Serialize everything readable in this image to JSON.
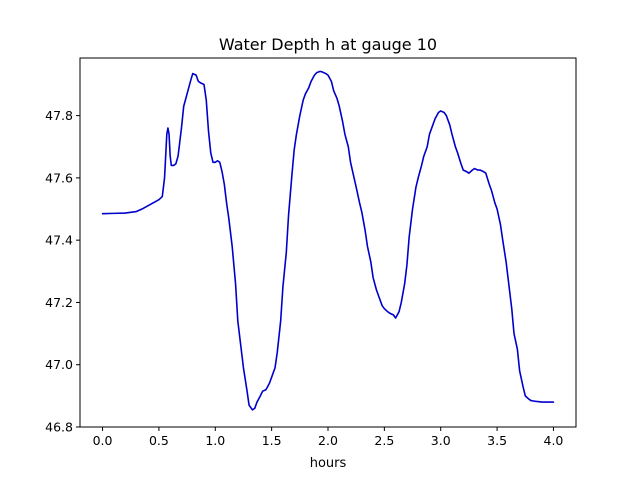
{
  "chart_data": {
    "type": "line",
    "title": "Water Depth h at gauge 10",
    "xlabel": "hours",
    "ylabel": "",
    "xlim": [
      -0.2,
      4.2
    ],
    "ylim": [
      46.8,
      47.985
    ],
    "xticks": [
      "0.0",
      "0.5",
      "1.0",
      "1.5",
      "2.0",
      "2.5",
      "3.0",
      "3.5",
      "4.0"
    ],
    "yticks": [
      "46.8",
      "47.0",
      "47.2",
      "47.4",
      "47.6",
      "47.8"
    ],
    "grid": false,
    "series": [
      {
        "color": "#0000cc",
        "x": [
          0.0,
          0.1,
          0.2,
          0.3,
          0.35,
          0.4,
          0.45,
          0.5,
          0.53,
          0.55,
          0.57,
          0.58,
          0.59,
          0.6,
          0.61,
          0.63,
          0.65,
          0.67,
          0.7,
          0.72,
          0.75,
          0.78,
          0.8,
          0.83,
          0.85,
          0.87,
          0.9,
          0.92,
          0.94,
          0.96,
          0.98,
          1.0,
          1.02,
          1.04,
          1.06,
          1.08,
          1.1,
          1.12,
          1.15,
          1.18,
          1.2,
          1.25,
          1.28,
          1.3,
          1.33,
          1.35,
          1.37,
          1.4,
          1.42,
          1.45,
          1.48,
          1.5,
          1.53,
          1.55,
          1.58,
          1.6,
          1.63,
          1.65,
          1.68,
          1.7,
          1.72,
          1.75,
          1.78,
          1.8,
          1.83,
          1.85,
          1.88,
          1.9,
          1.93,
          1.95,
          1.98,
          2.0,
          2.03,
          2.05,
          2.08,
          2.1,
          2.13,
          2.15,
          2.18,
          2.2,
          2.25,
          2.28,
          2.3,
          2.33,
          2.35,
          2.38,
          2.4,
          2.43,
          2.45,
          2.48,
          2.5,
          2.53,
          2.55,
          2.58,
          2.6,
          2.63,
          2.65,
          2.68,
          2.7,
          2.72,
          2.75,
          2.78,
          2.8,
          2.83,
          2.85,
          2.88,
          2.9,
          2.93,
          2.95,
          2.98,
          3.0,
          3.03,
          3.05,
          3.08,
          3.1,
          3.13,
          3.15,
          3.18,
          3.2,
          3.23,
          3.25,
          3.28,
          3.3,
          3.33,
          3.35,
          3.38,
          3.4,
          3.43,
          3.45,
          3.48,
          3.5,
          3.53,
          3.55,
          3.58,
          3.6,
          3.63,
          3.65,
          3.68,
          3.7,
          3.73,
          3.75,
          3.78,
          3.8,
          3.83,
          3.85,
          3.88,
          3.9,
          3.93,
          3.95,
          3.98,
          4.0
        ],
        "y": [
          47.485,
          47.486,
          47.487,
          47.492,
          47.5,
          47.51,
          47.52,
          47.53,
          47.54,
          47.6,
          47.74,
          47.76,
          47.74,
          47.67,
          47.64,
          47.64,
          47.645,
          47.67,
          47.76,
          47.83,
          47.87,
          47.91,
          47.935,
          47.93,
          47.91,
          47.905,
          47.9,
          47.85,
          47.75,
          47.68,
          47.65,
          47.65,
          47.655,
          47.65,
          47.62,
          47.58,
          47.52,
          47.47,
          47.38,
          47.26,
          47.14,
          46.99,
          46.92,
          46.87,
          46.855,
          46.86,
          46.88,
          46.9,
          46.915,
          46.92,
          46.94,
          46.96,
          46.99,
          47.04,
          47.14,
          47.25,
          47.36,
          47.48,
          47.61,
          47.69,
          47.74,
          47.8,
          47.85,
          47.87,
          47.89,
          47.91,
          47.93,
          47.938,
          47.942,
          47.94,
          47.935,
          47.93,
          47.91,
          47.88,
          47.855,
          47.83,
          47.78,
          47.74,
          47.7,
          47.65,
          47.57,
          47.52,
          47.49,
          47.43,
          47.38,
          47.33,
          47.28,
          47.24,
          47.22,
          47.19,
          47.18,
          47.17,
          47.165,
          47.16,
          47.15,
          47.17,
          47.2,
          47.26,
          47.32,
          47.41,
          47.5,
          47.57,
          47.6,
          47.64,
          47.67,
          47.7,
          47.74,
          47.77,
          47.79,
          47.81,
          47.815,
          47.81,
          47.8,
          47.77,
          47.74,
          47.7,
          47.68,
          47.645,
          47.625,
          47.62,
          47.615,
          47.625,
          47.63,
          47.625,
          47.625,
          47.62,
          47.615,
          47.58,
          47.56,
          47.52,
          47.5,
          47.45,
          47.4,
          47.33,
          47.27,
          47.18,
          47.1,
          47.05,
          46.98,
          46.93,
          46.9,
          46.89,
          46.885,
          46.883,
          46.882,
          46.881,
          46.88,
          46.88,
          46.88,
          46.88,
          46.88
        ]
      }
    ]
  }
}
